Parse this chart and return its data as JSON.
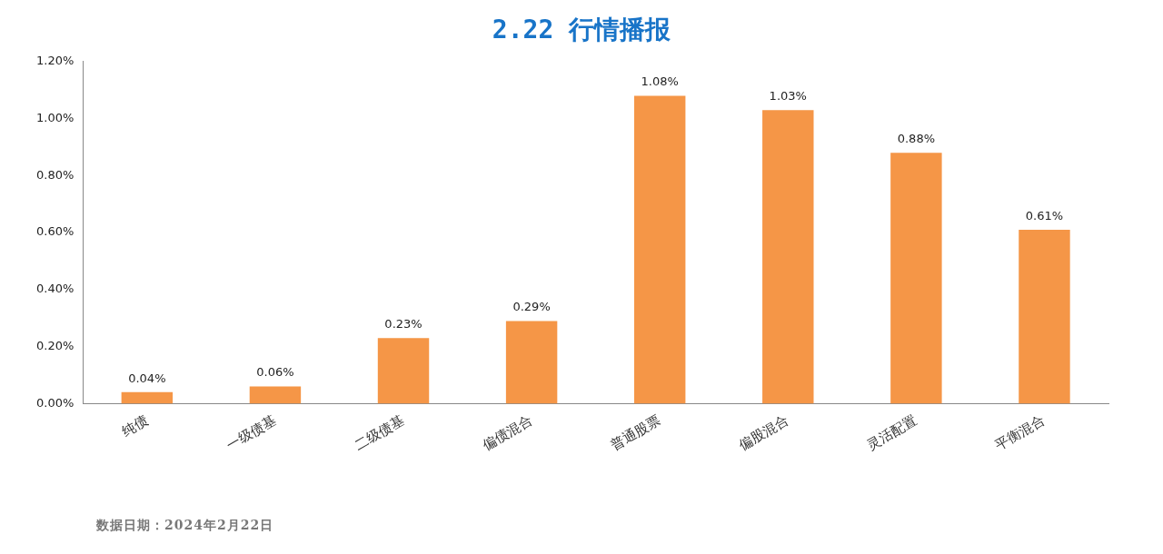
{
  "chart_data": {
    "type": "bar",
    "title": "2.22 行情播报",
    "categories": [
      "纯债",
      "一级债基",
      "二级债基",
      "偏债混合",
      "普通股票",
      "偏股混合",
      "灵活配置",
      "平衡混合"
    ],
    "values": [
      0.04,
      0.06,
      0.23,
      0.29,
      1.08,
      1.03,
      0.88,
      0.61
    ],
    "value_labels": [
      "0.04%",
      "0.06%",
      "0.23%",
      "0.29%",
      "1.08%",
      "1.03%",
      "0.88%",
      "0.61%"
    ],
    "color": "#f59647",
    "ylim": [
      0,
      1.2
    ],
    "yticks": [
      {
        "value": 0,
        "label": "0.00%"
      },
      {
        "value": 0.2,
        "label": "0.20%"
      },
      {
        "value": 0.4,
        "label": "0.40%"
      },
      {
        "value": 0.6,
        "label": "0.60%"
      },
      {
        "value": 0.8,
        "label": "0.80%"
      },
      {
        "value": 1.0,
        "label": "1.00%"
      },
      {
        "value": 1.2,
        "label": "1.20%"
      }
    ],
    "grid": false,
    "legend": false,
    "annotations": [
      "数据日期：2024年2月22日"
    ]
  }
}
